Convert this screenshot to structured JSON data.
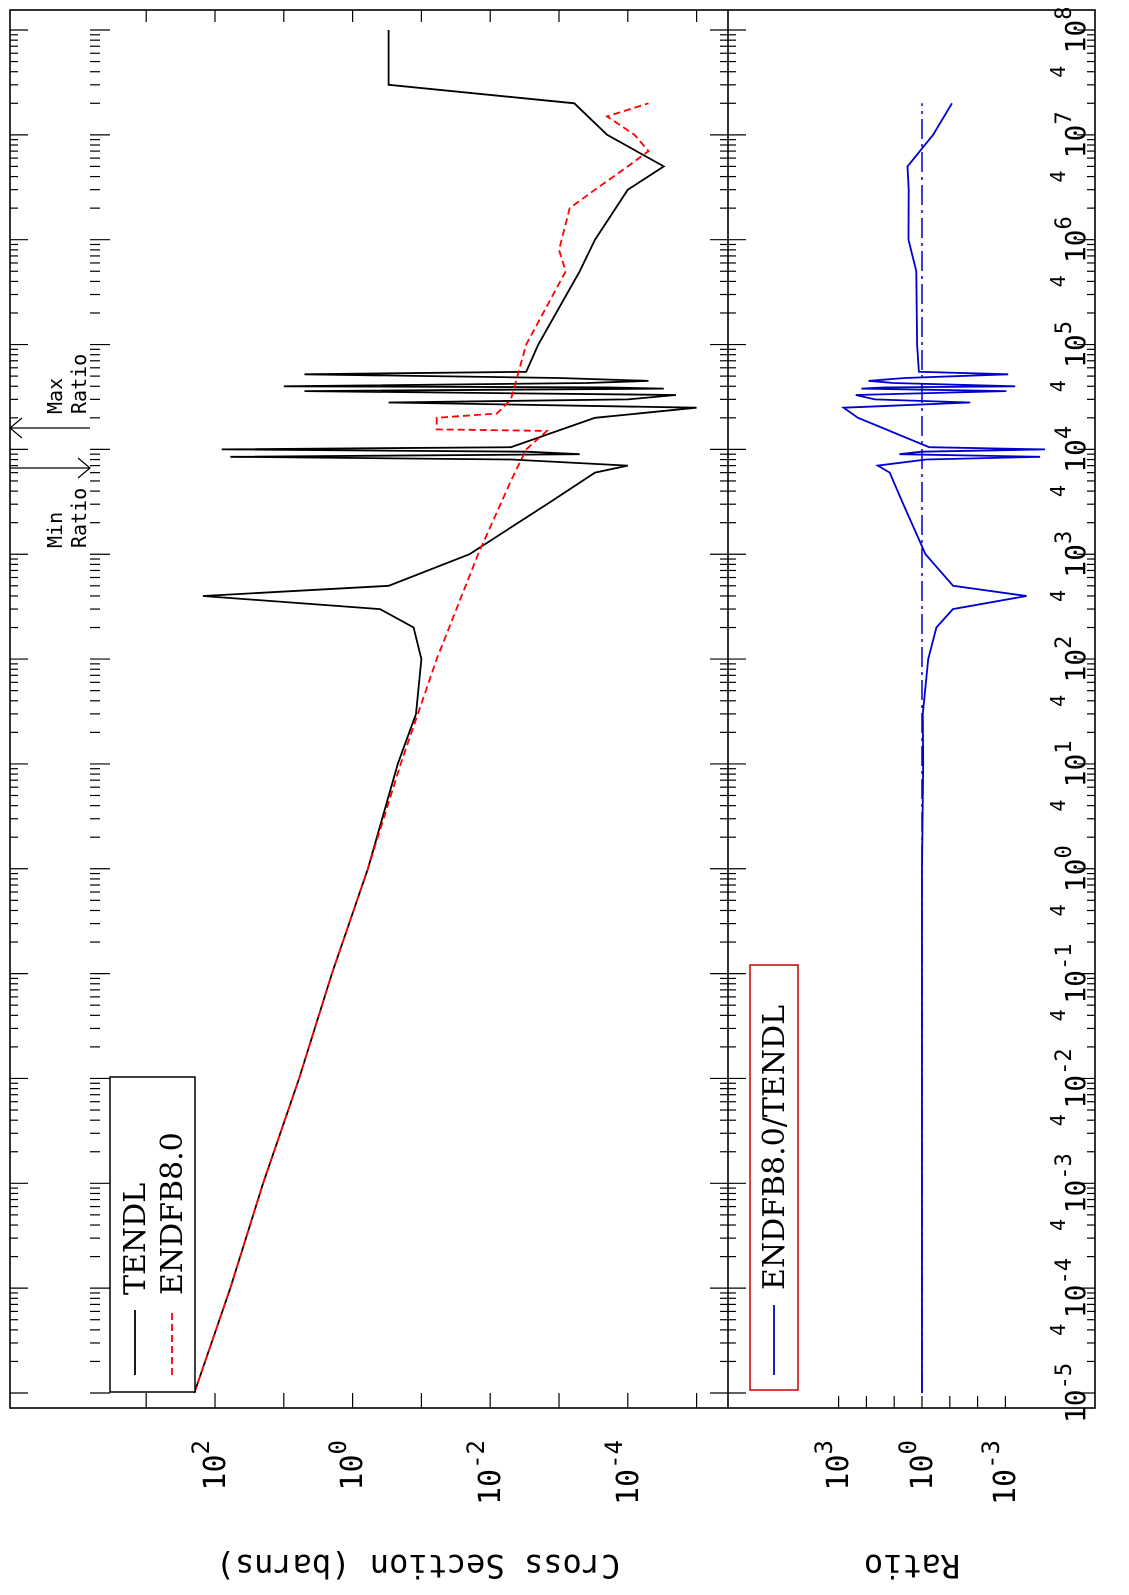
{
  "chart_data": {
    "type": "line",
    "orientation": "rotated-90",
    "xaxis": {
      "scale": "log",
      "range": [
        1e-05,
        100000000.0
      ],
      "tick_labels": [
        "10^-5",
        "10^-4",
        "10^-3",
        "10^-2",
        "10^-1",
        "10^0",
        "10^1",
        "10^2",
        "10^3",
        "10^4",
        "10^5",
        "10^6",
        "10^7",
        "10^8"
      ],
      "minor_label": "4"
    },
    "top_panel": {
      "ylabel": "Cross Section (barns)",
      "yscale": "log",
      "ylim": [
        1e-05,
        1000.0
      ],
      "tick_labels": [
        "10^2",
        "10^0",
        "10^-2",
        "10^-4"
      ],
      "legend": [
        "TENDL",
        "ENDFB8.0"
      ],
      "series": [
        {
          "name": "TENDL",
          "color": "#000000",
          "style": "solid",
          "points": [
            [
              1e-05,
              200
            ],
            [
              0.0001,
              60
            ],
            [
              0.001,
              20
            ],
            [
              0.01,
              6
            ],
            [
              0.1,
              2
            ],
            [
              1,
              0.6
            ],
            [
              10,
              0.22
            ],
            [
              30,
              0.12
            ],
            [
              100,
              0.1
            ],
            [
              200,
              0.13
            ],
            [
              300,
              0.4
            ],
            [
              400,
              150
            ],
            [
              500,
              0.3
            ],
            [
              1000,
              0.02
            ],
            [
              3000,
              0.0015
            ],
            [
              6000,
              0.0003
            ],
            [
              7000,
              0.0001
            ],
            [
              8000,
              0.005
            ],
            [
              8500,
              60
            ],
            [
              9000,
              0.0005
            ],
            [
              9500,
              0.003
            ],
            [
              10000,
              80
            ],
            [
              10500,
              0.005
            ],
            [
              20000,
              0.0003
            ],
            [
              25000,
              1e-05
            ],
            [
              28000,
              0.3
            ],
            [
              30000,
              0.0001
            ],
            [
              33000,
              2e-05
            ],
            [
              36000,
              5
            ],
            [
              38000,
              3e-05
            ],
            [
              39000,
              0.0002
            ],
            [
              40000,
              10
            ],
            [
              43000,
              0.0004
            ],
            [
              45000,
              5e-05
            ],
            [
              48000,
              0.001
            ],
            [
              52000,
              5
            ],
            [
              55000,
              0.003
            ],
            [
              100000,
              0.002
            ],
            [
              500000,
              0.0005
            ],
            [
              1000000.0,
              0.0003
            ],
            [
              3000000.0,
              0.0001
            ],
            [
              5000000.0,
              3e-05
            ],
            [
              10000000.0,
              0.0002
            ],
            [
              20000000.0,
              0.0006
            ],
            [
              30000000.0,
              0.3
            ],
            [
              100000000.0,
              0.3
            ]
          ]
        },
        {
          "name": "ENDFB8.0",
          "color": "#ff0000",
          "style": "dashed",
          "points": [
            [
              1e-05,
              200
            ],
            [
              0.0001,
              60
            ],
            [
              0.001,
              20
            ],
            [
              0.01,
              6
            ],
            [
              0.1,
              2
            ],
            [
              1,
              0.6
            ],
            [
              10,
              0.2
            ],
            [
              100,
              0.06
            ],
            [
              1000,
              0.015
            ],
            [
              5000,
              0.005
            ],
            [
              10000,
              0.003
            ],
            [
              15000,
              0.0015
            ],
            [
              15500,
              0.06
            ],
            [
              20000,
              0.06
            ],
            [
              22000,
              0.008
            ],
            [
              30000,
              0.005
            ],
            [
              100000,
              0.003
            ],
            [
              500000,
              0.0008
            ],
            [
              800000,
              0.001
            ],
            [
              2000000.0,
              0.0007
            ],
            [
              3000000.0,
              0.0003
            ],
            [
              5000000.0,
              0.0001
            ],
            [
              7000000.0,
              5e-05
            ],
            [
              10000000.0,
              8e-05
            ],
            [
              15000000.0,
              0.0002
            ],
            [
              20000000.0,
              5e-05
            ]
          ]
        }
      ]
    },
    "bottom_panel": {
      "ylabel": "Ratio",
      "yscale": "log",
      "tick_labels": [
        "10^3",
        "10^0",
        "10^-3"
      ],
      "legend": [
        "ENDFB8.0/TENDL"
      ],
      "series": [
        {
          "name": "ENDFB8.0/TENDL",
          "color": "#0000cc",
          "style": "solid"
        }
      ]
    },
    "annotations": [
      "Min Ratio",
      "Max Ratio"
    ]
  }
}
